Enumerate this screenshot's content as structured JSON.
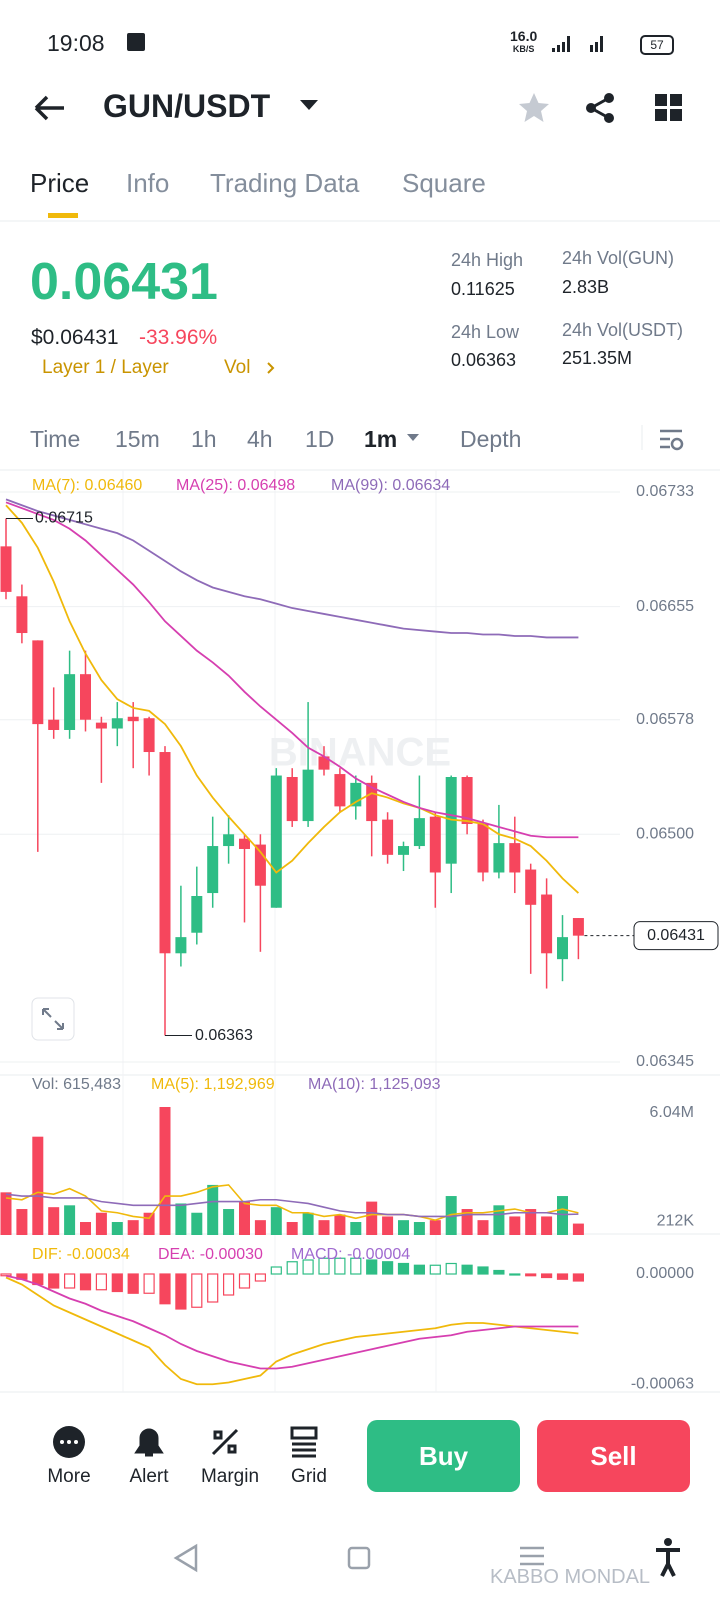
{
  "status_bar": {
    "time": "19:08",
    "speed": "16.0",
    "speed_unit": "KB/S",
    "battery": "57"
  },
  "header": {
    "pair": "GUN/USDT"
  },
  "tabs": [
    "Price",
    "Info",
    "Trading Data",
    "Square"
  ],
  "ticker": {
    "price": "0.06431",
    "usd_price": "$0.06431",
    "change": "-33.96%",
    "tags": [
      "Layer 1 / Layer",
      "Vol"
    ],
    "stats": [
      {
        "label": "24h High",
        "value": "0.11625"
      },
      {
        "label": "24h Vol(GUN)",
        "value": "2.83B"
      },
      {
        "label": "24h Low",
        "value": "0.06363"
      },
      {
        "label": "24h Vol(USDT)",
        "value": "251.35M"
      }
    ]
  },
  "intervals": [
    "Time",
    "15m",
    "1h",
    "4h",
    "1D",
    "1m",
    "Depth"
  ],
  "chart_data": {
    "type": "candlestick",
    "open": [
      0.06696,
      0.06662,
      0.06632,
      0.06578,
      0.06571,
      0.06609,
      0.06576,
      0.06572,
      0.0658,
      0.06579,
      0.06556,
      0.06419,
      0.06433,
      0.0646,
      0.06492,
      0.06497,
      0.06493,
      0.0645,
      0.06539,
      0.06509,
      0.06553,
      0.06541,
      0.06519,
      0.06535,
      0.0651,
      0.06486,
      0.06492,
      0.06512,
      0.0648,
      0.06539,
      0.06507,
      0.06474,
      0.06494,
      0.06476,
      0.06459,
      0.06415,
      0.06443
    ],
    "high": [
      0.06715,
      0.0667,
      0.06632,
      0.066,
      0.06625,
      0.06625,
      0.0658,
      0.0659,
      0.0659,
      0.0658,
      0.0656,
      0.06465,
      0.06478,
      0.06512,
      0.06513,
      0.065,
      0.065,
      0.06545,
      0.06545,
      0.0659,
      0.0656,
      0.06545,
      0.0654,
      0.0654,
      0.06515,
      0.06495,
      0.0654,
      0.06515,
      0.0654,
      0.0654,
      0.0651,
      0.0652,
      0.06512,
      0.0648,
      0.0647,
      0.06445,
      0.06443
    ],
    "low": [
      0.0666,
      0.0663,
      0.06488,
      0.06565,
      0.06565,
      0.0657,
      0.06535,
      0.0656,
      0.06545,
      0.0654,
      0.06363,
      0.0641,
      0.06425,
      0.0645,
      0.0648,
      0.0644,
      0.0642,
      0.0645,
      0.06505,
      0.06505,
      0.0654,
      0.06515,
      0.0651,
      0.06485,
      0.0648,
      0.06475,
      0.0649,
      0.0645,
      0.0646,
      0.065,
      0.06468,
      0.0647,
      0.0646,
      0.06405,
      0.06395,
      0.064,
      0.06415
    ],
    "close": [
      0.06665,
      0.06637,
      0.06575,
      0.06571,
      0.06609,
      0.06578,
      0.06572,
      0.06579,
      0.06577,
      0.06556,
      0.06419,
      0.0643,
      0.06458,
      0.06492,
      0.065,
      0.0649,
      0.06465,
      0.0654,
      0.06509,
      0.06544,
      0.06544,
      0.06519,
      0.06535,
      0.06509,
      0.06486,
      0.06492,
      0.06511,
      0.06474,
      0.06539,
      0.06507,
      0.06474,
      0.06494,
      0.06474,
      0.06452,
      0.06419,
      0.0643,
      0.06431
    ],
    "up_color": "#2ebd85",
    "down_color": "#f6465d",
    "ylim": [
      0.06345,
      0.06733
    ],
    "yticks": [
      0.06733,
      0.06655,
      0.06578,
      {
        "value": 0.065,
        "label": "0.06500"
      },
      0.06345
    ],
    "grid": true,
    "ma": [
      {
        "label": "MA(7): 0.06460",
        "color": "#f0b90b",
        "values": [
          0.06724,
          0.06712,
          0.06695,
          0.06672,
          0.06645,
          0.06623,
          0.06605,
          0.06592,
          0.06586,
          0.06584,
          0.06575,
          0.0656,
          0.0654,
          0.06525,
          0.06512,
          0.065,
          0.06488,
          0.06474,
          0.06482,
          0.06494,
          0.06505,
          0.06515,
          0.06522,
          0.06528,
          0.06525,
          0.06521,
          0.06518,
          0.06513,
          0.0651,
          0.06509,
          0.06507,
          0.065,
          0.06497,
          0.06492,
          0.06482,
          0.0647,
          0.0646
        ]
      },
      {
        "label": "MA(25): 0.06498",
        "color": "#d63fb0",
        "values": [
          0.06726,
          0.06722,
          0.06718,
          0.06714,
          0.06708,
          0.067,
          0.0669,
          0.0668,
          0.0667,
          0.06658,
          0.06645,
          0.06635,
          0.06625,
          0.06617,
          0.06608,
          0.06597,
          0.06587,
          0.06578,
          0.06569,
          0.06559,
          0.06553,
          0.06546,
          0.06538,
          0.06532,
          0.06527,
          0.06522,
          0.06518,
          0.06515,
          0.06513,
          0.06511,
          0.06508,
          0.06505,
          0.06502,
          0.06499,
          0.06498,
          0.06498,
          0.06498
        ]
      },
      {
        "label": "MA(99): 0.06634",
        "color": "#8e6bb8",
        "values": [
          0.06728,
          0.06724,
          0.0672,
          0.06717,
          0.06714,
          0.06711,
          0.06708,
          0.06705,
          0.067,
          0.06693,
          0.06686,
          0.06679,
          0.06673,
          0.06668,
          0.06665,
          0.06662,
          0.0666,
          0.06657,
          0.06654,
          0.06652,
          0.0665,
          0.06648,
          0.06646,
          0.06644,
          0.06642,
          0.0664,
          0.06639,
          0.06638,
          0.06637,
          0.06637,
          0.06636,
          0.06636,
          0.06635,
          0.06635,
          0.06634,
          0.06634,
          0.06634
        ]
      }
    ],
    "volume": {
      "label": "Vol: 615,483",
      "ylim": [
        0,
        6900000
      ],
      "yticks": [
        {
          "value": 6040000,
          "label": "6.04M"
        },
        {
          "value": 212000,
          "label": "212K"
        }
      ],
      "values": [
        2300000,
        1400000,
        5300000,
        1500000,
        1600000,
        700000,
        1200000,
        700000,
        800000,
        1200000,
        6900000,
        1700000,
        1200000,
        2700000,
        1400000,
        1800000,
        800000,
        1500000,
        700000,
        1200000,
        800000,
        1100000,
        700000,
        1800000,
        1000000,
        800000,
        700000,
        800000,
        2100000,
        1400000,
        800000,
        1600000,
        1000000,
        1400000,
        1000000,
        2100000,
        615483
      ],
      "ma": [
        {
          "label": "MA(5): 1,192,969",
          "color": "#f0b90b",
          "values": [
            2000000,
            1900000,
            2300000,
            2200000,
            2500000,
            2100000,
            1300000,
            1200000,
            1000000,
            900000,
            2100000,
            2100000,
            2300000,
            2600000,
            2700000,
            1700000,
            1600000,
            1600000,
            1200000,
            1200000,
            1000000,
            1100000,
            900000,
            1100000,
            1100000,
            1100000,
            1000000,
            800000,
            1100000,
            1200000,
            1200000,
            1300000,
            1400000,
            1200000,
            1200000,
            1400000,
            1192969
          ]
        },
        {
          "label": "MA(10): 1,125,093",
          "color": "#8e6bb8",
          "values": [
            2200000,
            2100000,
            2100000,
            2000000,
            2000000,
            2000000,
            1800000,
            1700000,
            1600000,
            1600000,
            1600000,
            1600000,
            1700000,
            1800000,
            1800000,
            1800000,
            1900000,
            1900000,
            1800000,
            1700000,
            1500000,
            1300000,
            1200000,
            1200000,
            1100000,
            1100000,
            1000000,
            1000000,
            1000000,
            1100000,
            1100000,
            1100000,
            1200000,
            1200000,
            1200000,
            1100000,
            1125093
          ]
        }
      ]
    },
    "macd": {
      "ylim": [
        -0.00068,
        8e-05
      ],
      "yticks": [
        {
          "value": 0,
          "label": "0.00000"
        },
        -0.00063
      ],
      "histogram_label": "MACD: -0.00004",
      "histogram_color": "#a06ad0",
      "histogram": [
        -1e-05,
        -3e-05,
        -6e-05,
        -8e-05,
        -8e-05,
        -9e-05,
        -9e-05,
        -0.0001,
        -0.00011,
        -0.00011,
        -0.00017,
        -0.0002,
        -0.00019,
        -0.00016,
        -0.00012,
        -8e-05,
        -4e-05,
        4e-05,
        7e-05,
        8e-05,
        9e-05,
        9e-05,
        9e-05,
        8e-05,
        7e-05,
        6e-05,
        5e-05,
        5e-05,
        6e-05,
        5e-05,
        4e-05,
        2e-05,
        0,
        -1e-05,
        -2e-05,
        -3e-05,
        -4e-05
      ],
      "lines": [
        {
          "label": "DIF: -0.00034",
          "color": "#f0b90b",
          "values": [
            -2e-05,
            -6e-05,
            -0.00012,
            -0.00018,
            -0.00022,
            -0.00026,
            -0.0003,
            -0.00034,
            -0.00038,
            -0.00042,
            -0.00052,
            -0.0006,
            -0.00063,
            -0.00063,
            -0.00062,
            -0.0006,
            -0.00058,
            -0.0005,
            -0.00046,
            -0.00043,
            -0.0004,
            -0.00038,
            -0.00036,
            -0.00035,
            -0.00034,
            -0.00033,
            -0.00032,
            -0.00031,
            -0.00029,
            -0.00028,
            -0.00028,
            -0.00029,
            -0.0003,
            -0.00031,
            -0.00032,
            -0.00033,
            -0.00034
          ]
        },
        {
          "label": "DEA: -0.00030",
          "color": "#d63fb0",
          "values": [
            -1e-05,
            -3e-05,
            -6e-05,
            -0.0001,
            -0.00014,
            -0.00017,
            -0.00021,
            -0.00024,
            -0.00027,
            -0.00031,
            -0.00035,
            -0.0004,
            -0.00044,
            -0.00047,
            -0.0005,
            -0.00052,
            -0.00054,
            -0.00054,
            -0.00053,
            -0.00051,
            -0.00049,
            -0.00047,
            -0.00045,
            -0.00043,
            -0.00041,
            -0.00039,
            -0.00037,
            -0.00036,
            -0.00035,
            -0.00033,
            -0.00032,
            -0.00031,
            -0.0003,
            -0.0003,
            -0.0003,
            -0.0003,
            -0.0003
          ]
        }
      ]
    }
  },
  "toolbar": {
    "actions": [
      "More",
      "Alert",
      "Margin",
      "Grid"
    ],
    "buy": "Buy",
    "sell": "Sell"
  },
  "watermark": {
    "logo": "BINANCE",
    "author": "KABBO MONDAL"
  }
}
